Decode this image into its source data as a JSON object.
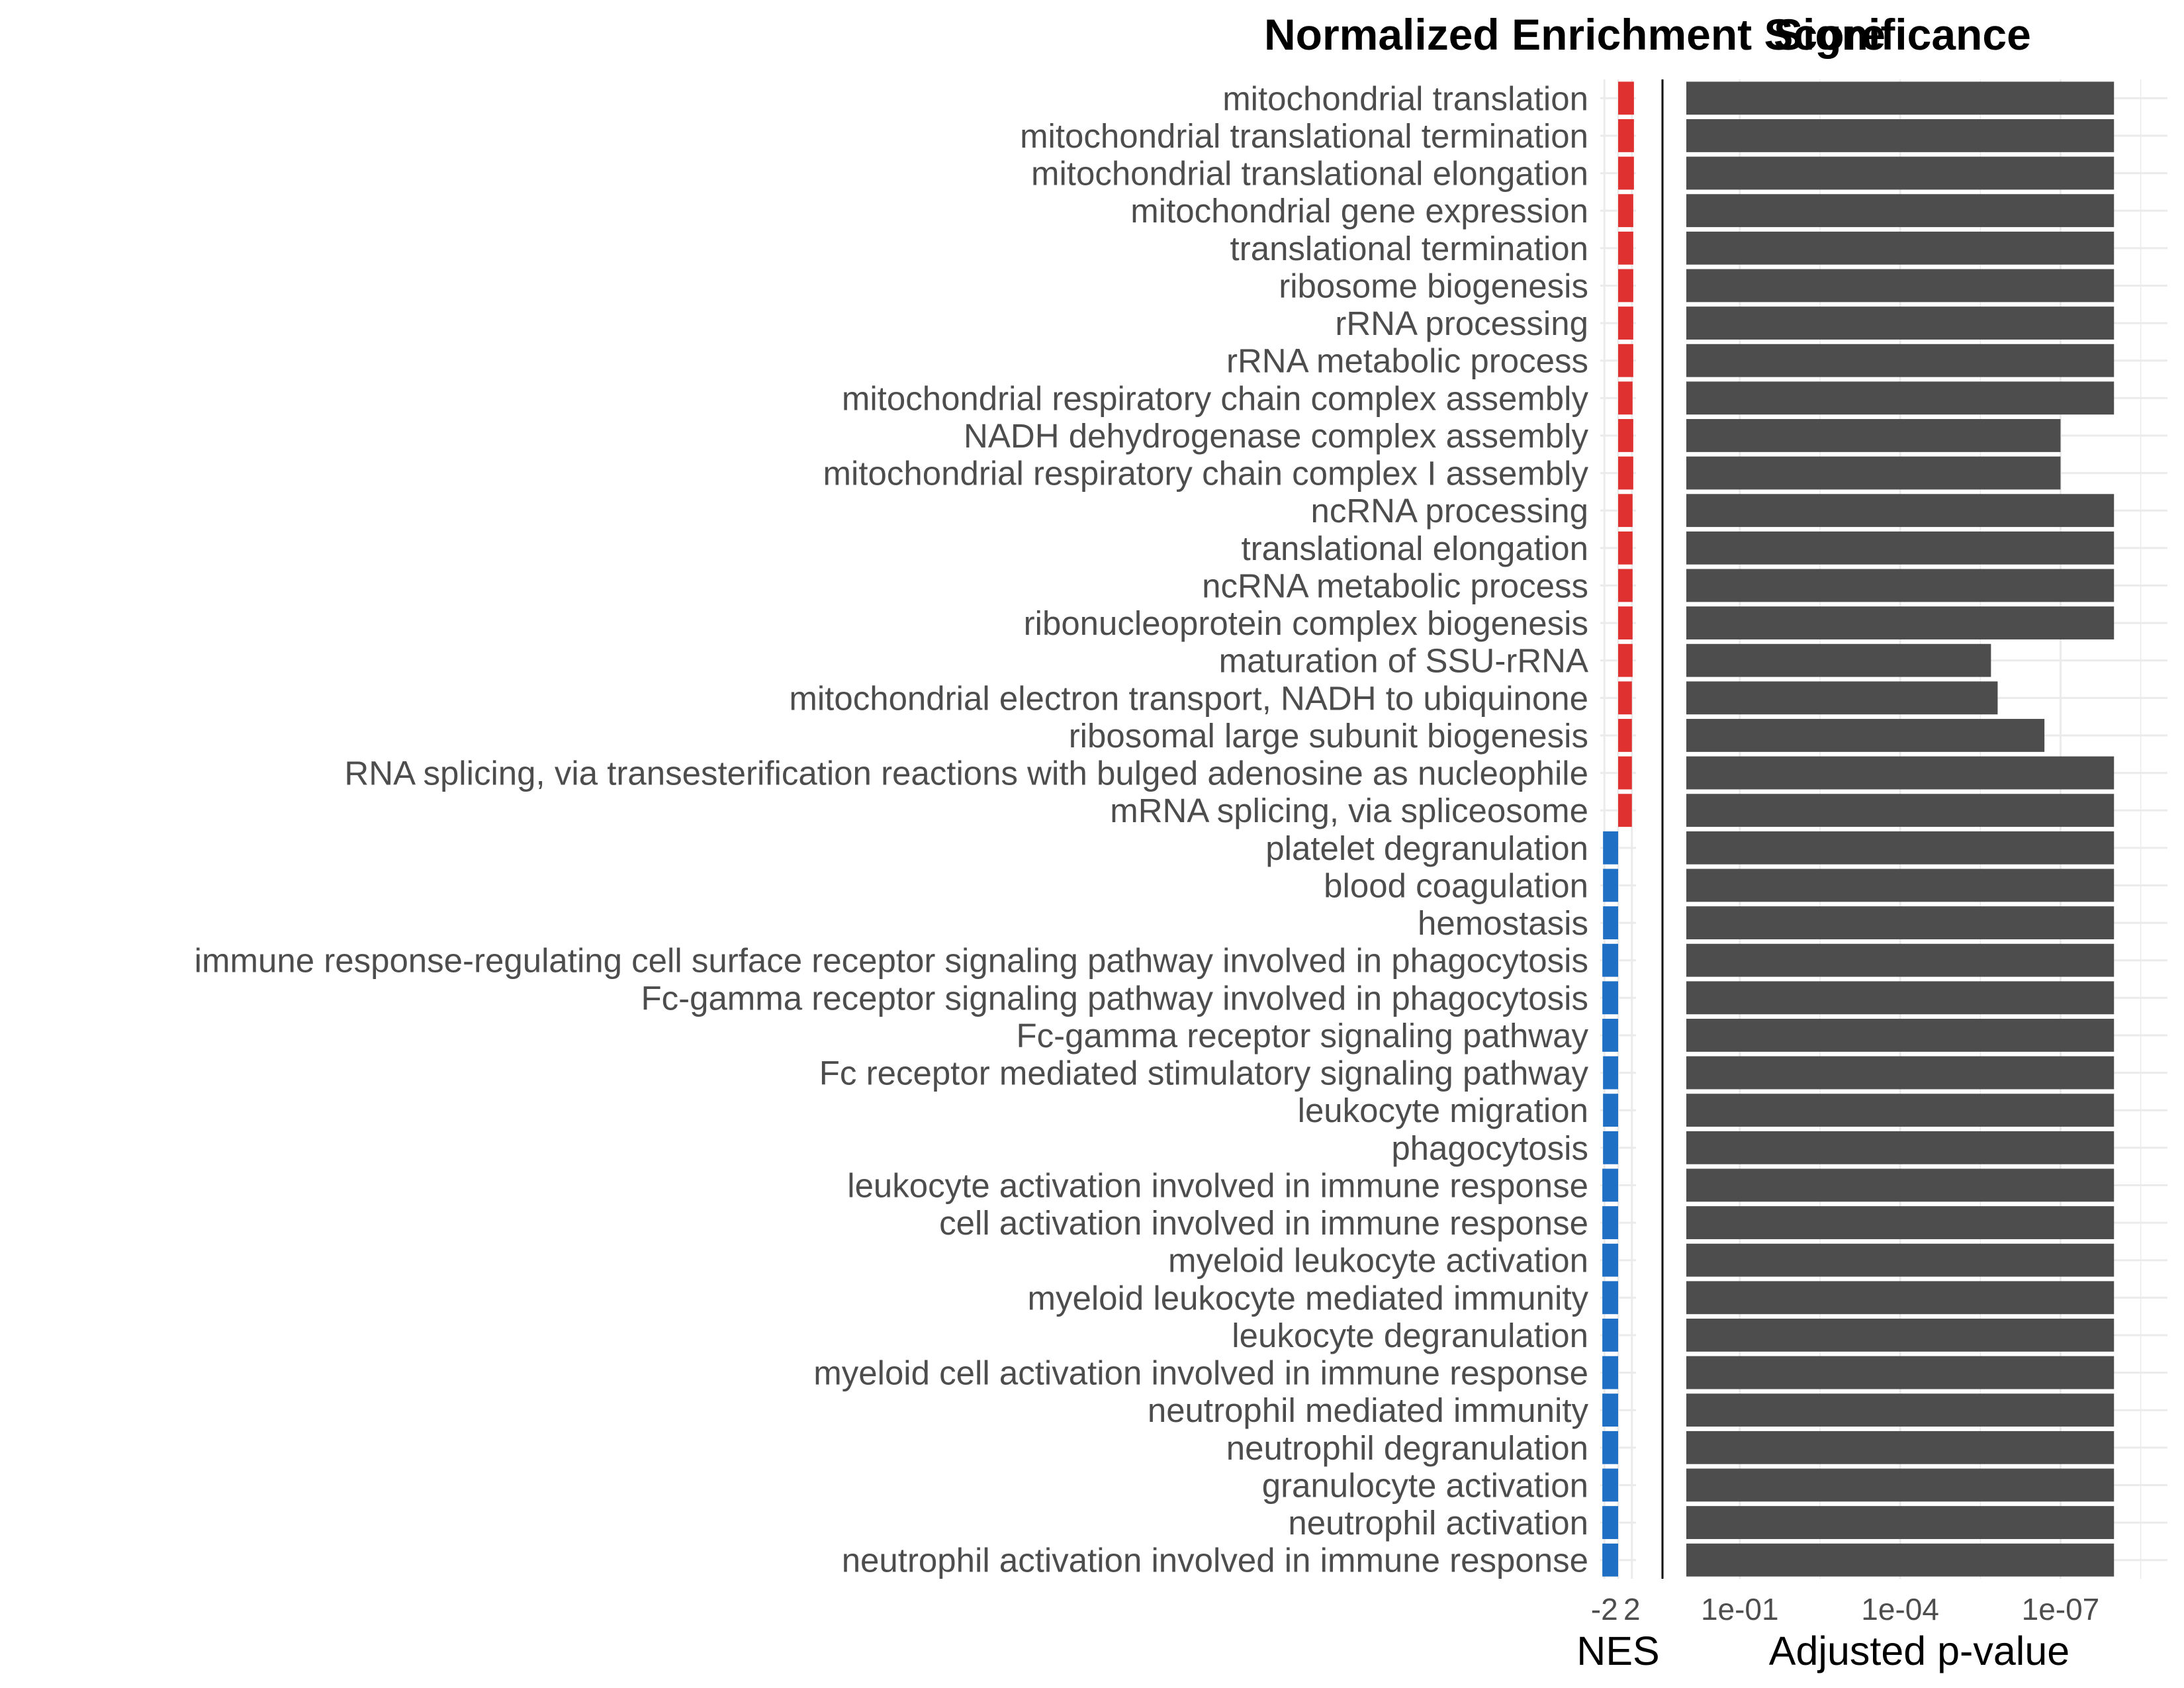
{
  "chart_data": [
    {
      "type": "bar",
      "orientation": "horizontal",
      "title": "Normalized Enrichment Score",
      "xlabel": "NES",
      "x_ticks": [
        "-2",
        "2"
      ],
      "xlim": [
        -2.6,
        2.6
      ],
      "grid": true,
      "legend": "none",
      "colors": {
        "positive": "#e03131",
        "negative": "#1f6fc5"
      },
      "categories": [
        "mitochondrial translation",
        "mitochondrial translational termination",
        "mitochondrial translational elongation",
        "mitochondrial gene expression",
        "translational termination",
        "ribosome biogenesis",
        "rRNA processing",
        "rRNA metabolic process",
        "mitochondrial respiratory chain complex assembly",
        "NADH dehydrogenase complex assembly",
        "mitochondrial respiratory chain complex I assembly",
        "ncRNA processing",
        "translational elongation",
        "ncRNA metabolic process",
        "ribonucleoprotein complex biogenesis",
        "maturation of SSU-rRNA",
        "mitochondrial electron transport, NADH to ubiquinone",
        "ribosomal large subunit biogenesis",
        "RNA splicing, via transesterification reactions with bulged adenosine as nucleophile",
        "mRNA splicing, via spliceosome",
        "platelet degranulation",
        "blood coagulation",
        "hemostasis",
        "immune response-regulating cell surface receptor signaling pathway involved in phagocytosis",
        "Fc-gamma receptor signaling pathway involved in phagocytosis",
        "Fc-gamma receptor signaling pathway",
        "Fc receptor mediated stimulatory signaling pathway",
        "leukocyte migration",
        "phagocytosis",
        "leukocyte activation involved in immune response",
        "cell activation involved in immune response",
        "myeloid leukocyte activation",
        "myeloid leukocyte mediated immunity",
        "leukocyte degranulation",
        "myeloid cell activation involved in immune response",
        "neutrophil mediated immunity",
        "neutrophil degranulation",
        "granulocyte activation",
        "neutrophil activation",
        "neutrophil activation involved in immune response"
      ],
      "values": [
        2.3,
        2.3,
        2.3,
        2.2,
        2.2,
        2.2,
        2.2,
        2.2,
        2.1,
        2.2,
        2.2,
        2.1,
        2.1,
        2.1,
        2.1,
        2.1,
        2.0,
        2.0,
        2.0,
        2.0,
        -2.2,
        -2.2,
        -2.2,
        -2.3,
        -2.3,
        -2.3,
        -2.2,
        -2.2,
        -2.2,
        -2.3,
        -2.3,
        -2.3,
        -2.3,
        -2.3,
        -2.3,
        -2.3,
        -2.3,
        -2.3,
        -2.3,
        -2.3
      ]
    },
    {
      "type": "bar",
      "orientation": "horizontal",
      "title": "Significance",
      "xlabel": "Adjusted p-value",
      "x_scale": "log10-reversed",
      "x_ticks": [
        "1e-01",
        "1e-04",
        "1e-07"
      ],
      "xlim": [
        1,
        1e-09
      ],
      "grid": true,
      "legend": "none",
      "bar_color": "#4d4d4d",
      "values": [
        1e-08,
        1e-08,
        1e-08,
        1e-08,
        1e-08,
        1e-08,
        1e-08,
        1e-08,
        1e-08,
        1e-07,
        1e-07,
        1e-08,
        1e-08,
        1e-08,
        1e-08,
        2e-06,
        1.5e-06,
        2e-07,
        1e-08,
        1e-08,
        1e-08,
        1e-08,
        1e-08,
        1e-08,
        1e-08,
        1e-08,
        1e-08,
        1e-08,
        1e-08,
        1e-08,
        1e-08,
        1e-08,
        1e-08,
        1e-08,
        1e-08,
        1e-08,
        1e-08,
        1e-08,
        1e-08,
        1e-08
      ]
    }
  ]
}
